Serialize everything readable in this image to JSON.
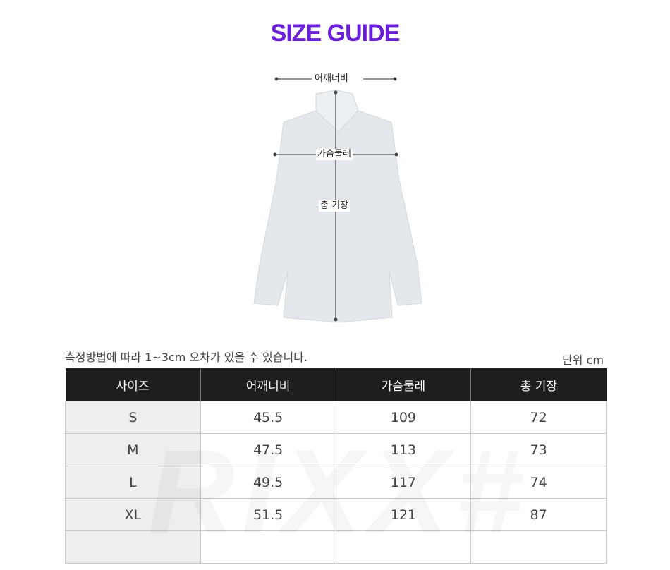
{
  "title": "SIZE GUIDE",
  "diagram": {
    "shoulder_label": "어깨너비",
    "chest_label": "가슴둘레",
    "length_label": "총 기장",
    "watermark": "rixx"
  },
  "note": "측정방법에 따라 1~3cm 오차가 있을 수 있습니다.",
  "unit": "단위 cm",
  "table": {
    "headers": [
      "사이즈",
      "어깨너비",
      "가슴둘레",
      "총 기장"
    ],
    "rows": [
      [
        "S",
        "45.5",
        "109",
        "72"
      ],
      [
        "M",
        "47.5",
        "113",
        "73"
      ],
      [
        "L",
        "49.5",
        "117",
        "74"
      ],
      [
        "XL",
        "51.5",
        "121",
        "87"
      ],
      [
        "",
        "",
        "",
        ""
      ]
    ],
    "watermark": "RIXX#"
  },
  "colors": {
    "title": "#6a1fd8",
    "header_bg": "#1e1e1e",
    "size_col_bg": "#eeeeee"
  }
}
